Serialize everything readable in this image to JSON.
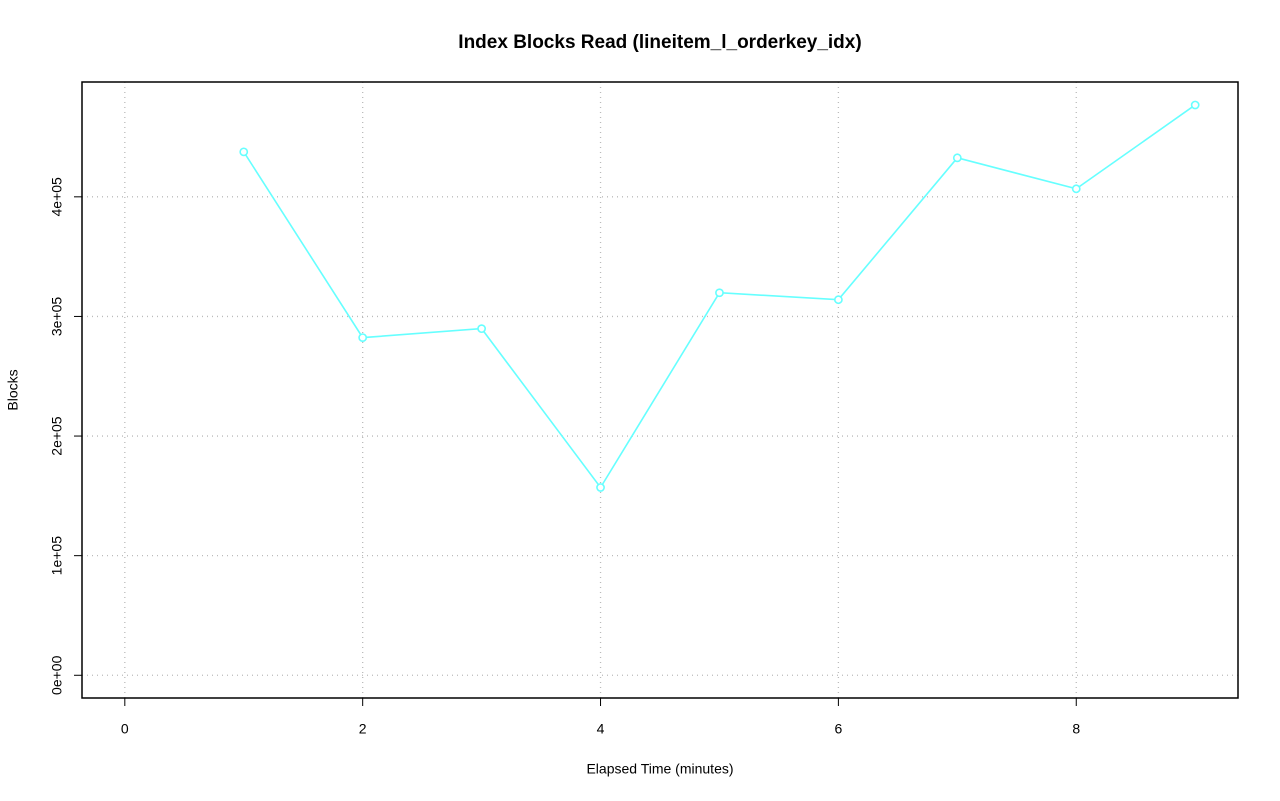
{
  "chart_data": {
    "type": "line",
    "title": "Index Blocks Read (lineitem_l_orderkey_idx)",
    "x_label": "Elapsed Time (minutes)",
    "y_label": "Blocks",
    "series": [
      {
        "color": "#66ffff",
        "x": [
          1,
          2,
          3,
          4,
          5,
          6,
          7,
          8,
          9
        ],
        "values": [
          437600,
          282300,
          289800,
          157000,
          319800,
          314000,
          432600,
          406700,
          476800
        ]
      }
    ],
    "xlim": [
      -0.36,
      9.36
    ],
    "ylim": [
      -19000,
      496000
    ],
    "xticks": [
      0,
      2,
      4,
      6,
      8
    ],
    "yticks": [
      {
        "value": 0,
        "label": "0e+00"
      },
      {
        "value": 100000,
        "label": "1e+05"
      },
      {
        "value": 200000,
        "label": "2e+05"
      },
      {
        "value": 300000,
        "label": "3e+05"
      },
      {
        "value": 400000,
        "label": "4e+05"
      }
    ],
    "grid": true
  }
}
